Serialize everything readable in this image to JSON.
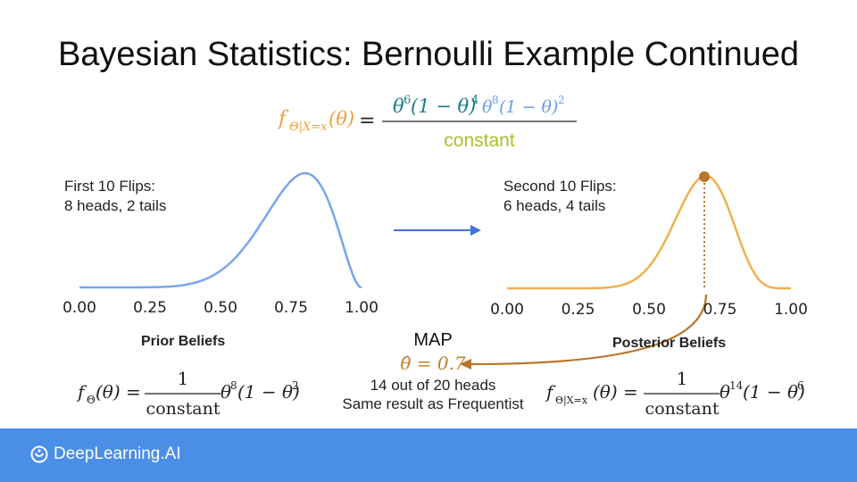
{
  "slide": {
    "title": "Bayesian Statistics: Bernoulli Example Continued"
  },
  "top_formula": {
    "lhs_f": "f",
    "lhs_sub": "Θ|X=x",
    "lhs_arg": "(θ)",
    "equals": "=",
    "num_part1_base": "θ",
    "num_part1_exp": "6",
    "num_part1_mid": "(1 − θ)",
    "num_part1_exp2": "4",
    "num_part2_base": "θ",
    "num_part2_exp": "8",
    "num_part2_mid": "(1 − θ)",
    "num_part2_exp2": "2",
    "denominator": "constant",
    "colors": {
      "lhs": "#e8a13c",
      "num1": "#1b7a8a",
      "num2": "#6a9ee8",
      "denom": "#a7c12a"
    }
  },
  "prior": {
    "flips_line1": "First 10 Flips:",
    "flips_line2": "8 heads, 2 tails",
    "caption": "Prior Beliefs",
    "ticks": [
      "0.00",
      "0.25",
      "0.50",
      "0.75",
      "1.00"
    ],
    "formula_lhs": "f",
    "formula_sub": "Θ",
    "formula_arg": "(θ) =",
    "formula_num": "1",
    "formula_den": "constant",
    "formula_rhs_a": "θ",
    "formula_rhs_exp_a": "8",
    "formula_rhs_b": "(1 − θ)",
    "formula_rhs_exp_b": "2",
    "color": "#78a6ea"
  },
  "posterior": {
    "flips_line1": "Second 10 Flips:",
    "flips_line2": "6 heads, 4 tails",
    "caption": "Posterior Beliefs",
    "ticks": [
      "0.00",
      "0.25",
      "0.50",
      "0.75",
      "1.00"
    ],
    "formula_lhs": "f",
    "formula_sub": "Θ|X=x",
    "formula_arg": "(θ) =",
    "formula_num": "1",
    "formula_den": "constant",
    "formula_rhs_a": "θ",
    "formula_rhs_exp_a": "14",
    "formula_rhs_b": "(1 − θ)",
    "formula_rhs_exp_b": "6",
    "color": "#f0b04e",
    "marker_color": "#b9752a"
  },
  "map": {
    "label": "MAP",
    "estimate": "θ̂ = 0.7",
    "line1": "14 out of 20 heads",
    "line2": "Same result as Frequentist",
    "color": "#c0822e"
  },
  "footer": {
    "brand": "DeepLearning.AI",
    "color": "#4a8ee6"
  }
}
